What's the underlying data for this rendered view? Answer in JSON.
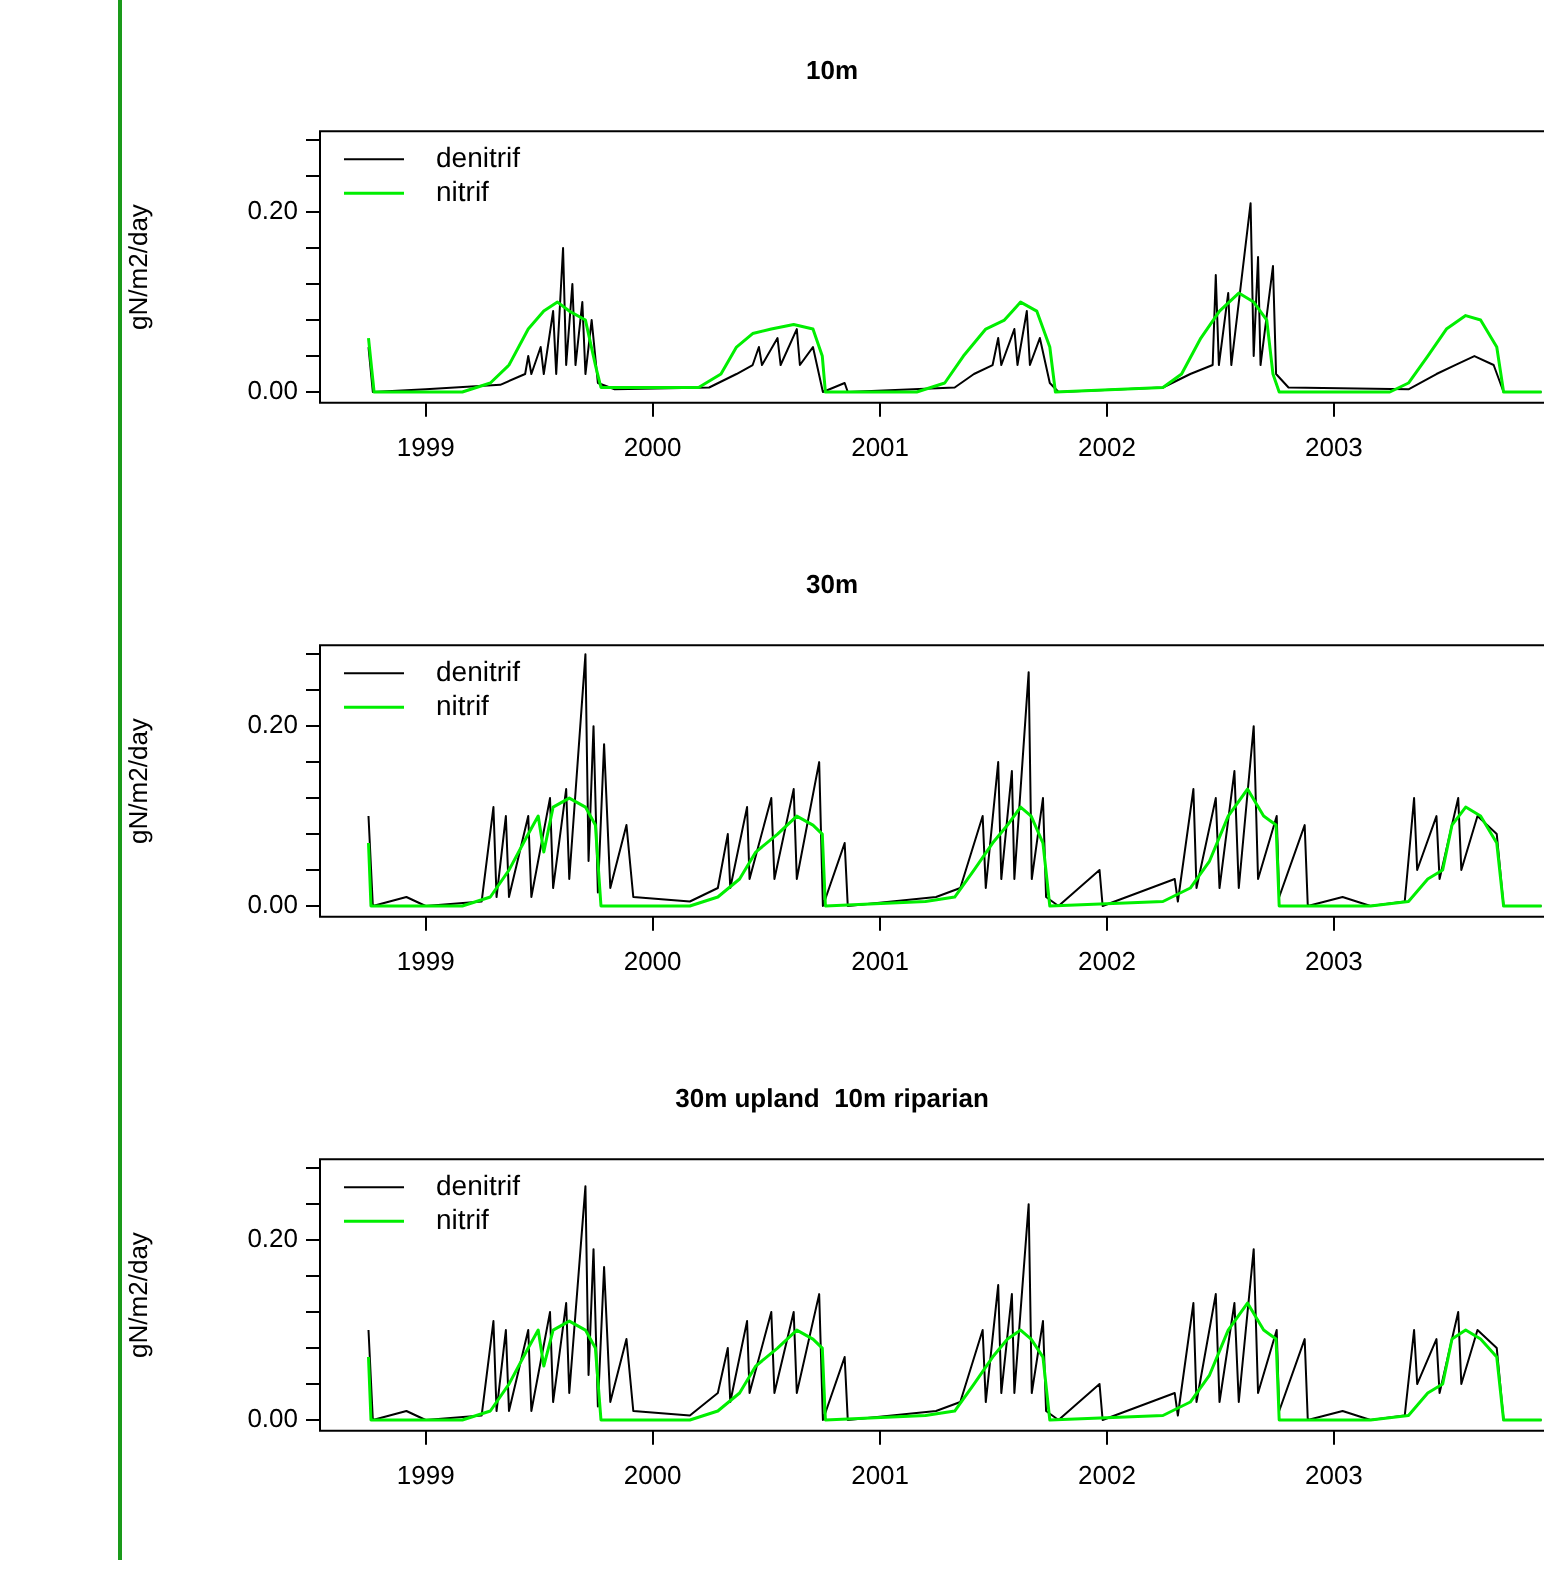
{
  "chart_data": [
    {
      "type": "line",
      "title": "10m",
      "ylabel": "gN/m2/day",
      "legend": "top left",
      "grid": false,
      "marker": "none",
      "xlim": [
        "1998-07-15",
        "2003-12-05"
      ],
      "ylim": [
        -0.012,
        0.29
      ],
      "xticks": [
        {
          "value": "1999-01-01",
          "label": "1999"
        },
        {
          "value": "2000-01-01",
          "label": "2000"
        },
        {
          "value": "2001-01-01",
          "label": "2001"
        },
        {
          "value": "2002-01-01",
          "label": "2002"
        },
        {
          "value": "2003-01-01",
          "label": "2003"
        }
      ],
      "yticks": [
        {
          "value": 0,
          "label": "0.00"
        },
        {
          "value": 0.04,
          "label": null
        },
        {
          "value": 0.08,
          "label": null
        },
        {
          "value": 0.12,
          "label": null
        },
        {
          "value": 0.16,
          "label": null
        },
        {
          "value": 0.2,
          "label": "0.20"
        },
        {
          "value": 0.24,
          "label": null
        },
        {
          "value": 0.28,
          "label": null
        }
      ],
      "series": [
        {
          "name": "denitrif",
          "color": "#000000",
          "x": [
            "1998-10-01",
            "1998-10-08",
            "1999-01-01",
            "1999-05-01",
            "1999-06-10",
            "1999-06-15",
            "1999-06-20",
            "1999-07-05",
            "1999-07-10",
            "1999-07-25",
            "1999-07-30",
            "1999-08-10",
            "1999-08-15",
            "1999-08-25",
            "1999-08-30",
            "1999-09-10",
            "1999-09-15",
            "1999-09-25",
            "1999-10-05",
            "1999-11-01",
            "2000-04-01",
            "2000-05-15",
            "2000-06-10",
            "2000-06-20",
            "2000-06-25",
            "2000-07-20",
            "2000-07-25",
            "2000-08-20",
            "2000-08-25",
            "2000-09-15",
            "2000-10-01",
            "2000-11-05",
            "2000-11-10",
            "2001-05-01",
            "2001-06-01",
            "2001-07-01",
            "2001-07-10",
            "2001-07-15",
            "2001-08-05",
            "2001-08-10",
            "2001-08-25",
            "2001-08-30",
            "2001-09-15",
            "2001-10-01",
            "2001-10-15",
            "2002-04-01",
            "2002-05-15",
            "2002-06-20",
            "2002-06-25",
            "2002-06-30",
            "2002-07-15",
            "2002-07-20",
            "2002-08-20",
            "2002-08-25",
            "2002-09-01",
            "2002-09-05",
            "2002-09-25",
            "2002-09-30",
            "2002-10-20",
            "2003-05-01",
            "2003-06-15",
            "2003-07-15",
            "2003-08-15",
            "2003-09-15",
            "2003-10-01",
            "2003-12-01"
          ],
          "values": [
            0.05,
            0,
            0.003,
            0.008,
            0.02,
            0.04,
            0.02,
            0.05,
            0.02,
            0.09,
            0.02,
            0.16,
            0.03,
            0.12,
            0.03,
            0.1,
            0.02,
            0.08,
            0.01,
            0.003,
            0.005,
            0.02,
            0.03,
            0.05,
            0.03,
            0.06,
            0.03,
            0.07,
            0.03,
            0.05,
            0,
            0.01,
            0,
            0.005,
            0.02,
            0.03,
            0.06,
            0.03,
            0.07,
            0.03,
            0.09,
            0.03,
            0.06,
            0.01,
            0,
            0.005,
            0.02,
            0.03,
            0.13,
            0.03,
            0.11,
            0.03,
            0.21,
            0.04,
            0.15,
            0.03,
            0.14,
            0.02,
            0.005,
            0.003,
            0.02,
            0.03,
            0.04,
            0.03,
            0,
            0
          ]
        },
        {
          "name": "nitrif",
          "color": "#00ee00",
          "x": [
            "1998-10-01",
            "1998-10-10",
            "1999-03-01",
            "1999-04-15",
            "1999-05-15",
            "1999-06-15",
            "1999-07-10",
            "1999-08-01",
            "1999-08-20",
            "1999-09-15",
            "1999-10-01",
            "1999-10-10",
            "2000-03-15",
            "2000-04-20",
            "2000-05-15",
            "2000-06-10",
            "2000-07-10",
            "2000-08-15",
            "2000-09-15",
            "2000-09-30",
            "2000-10-05",
            "2001-03-01",
            "2001-04-15",
            "2001-05-15",
            "2001-06-20",
            "2001-07-20",
            "2001-08-15",
            "2001-09-10",
            "2001-10-01",
            "2001-10-10",
            "2002-04-01",
            "2002-05-01",
            "2002-06-01",
            "2002-07-01",
            "2002-08-01",
            "2002-08-25",
            "2002-09-15",
            "2002-09-25",
            "2002-10-05",
            "2003-04-01",
            "2003-05-01",
            "2003-06-01",
            "2003-07-01",
            "2003-08-01",
            "2003-08-25",
            "2003-09-20",
            "2003-10-01",
            "2003-12-01"
          ],
          "values": [
            0.06,
            0,
            0,
            0.01,
            0.03,
            0.07,
            0.09,
            0.1,
            0.09,
            0.08,
            0.03,
            0.005,
            0.005,
            0.02,
            0.05,
            0.065,
            0.07,
            0.075,
            0.07,
            0.04,
            0,
            0,
            0.01,
            0.04,
            0.07,
            0.08,
            0.1,
            0.09,
            0.05,
            0,
            0.005,
            0.02,
            0.06,
            0.09,
            0.11,
            0.1,
            0.08,
            0.02,
            0,
            0,
            0.01,
            0.04,
            0.07,
            0.085,
            0.08,
            0.05,
            0,
            0
          ]
        }
      ]
    },
    {
      "type": "line",
      "title": "30m",
      "ylabel": "gN/m2/day",
      "legend": "top left",
      "grid": false,
      "marker": "none",
      "xlim": [
        "1998-07-15",
        "2003-12-05"
      ],
      "ylim": [
        -0.012,
        0.29
      ],
      "xticks": [
        {
          "value": "1999-01-01",
          "label": "1999"
        },
        {
          "value": "2000-01-01",
          "label": "2000"
        },
        {
          "value": "2001-01-01",
          "label": "2001"
        },
        {
          "value": "2002-01-01",
          "label": "2002"
        },
        {
          "value": "2003-01-01",
          "label": "2003"
        }
      ],
      "yticks": [
        {
          "value": 0,
          "label": "0.00"
        },
        {
          "value": 0.04,
          "label": null
        },
        {
          "value": 0.08,
          "label": null
        },
        {
          "value": 0.12,
          "label": null
        },
        {
          "value": 0.16,
          "label": null
        },
        {
          "value": 0.2,
          "label": "0.20"
        },
        {
          "value": 0.24,
          "label": null
        },
        {
          "value": 0.28,
          "label": null
        }
      ],
      "series": [
        {
          "name": "denitrif",
          "color": "#000000",
          "x": [
            "1998-10-01",
            "1998-10-08",
            "1998-12-01",
            "1999-01-01",
            "1999-04-01",
            "1999-04-20",
            "1999-04-25",
            "1999-05-10",
            "1999-05-15",
            "1999-06-15",
            "1999-06-20",
            "1999-07-20",
            "1999-07-25",
            "1999-08-15",
            "1999-08-20",
            "1999-09-15",
            "1999-09-20",
            "1999-09-28",
            "1999-10-05",
            "1999-10-15",
            "1999-10-25",
            "1999-11-20",
            "1999-12-01",
            "2000-03-01",
            "2000-04-15",
            "2000-05-01",
            "2000-05-05",
            "2000-06-01",
            "2000-06-05",
            "2000-07-10",
            "2000-07-15",
            "2000-08-15",
            "2000-08-20",
            "2000-09-25",
            "2000-10-01",
            "2000-11-05",
            "2000-11-10",
            "2001-04-01",
            "2001-05-10",
            "2001-06-15",
            "2001-06-20",
            "2001-07-10",
            "2001-07-15",
            "2001-08-01",
            "2001-08-05",
            "2001-08-28",
            "2001-09-02",
            "2001-09-20",
            "2001-09-25",
            "2001-10-15",
            "2001-12-20",
            "2001-12-25",
            "2002-04-20",
            "2002-04-25",
            "2002-05-20",
            "2002-05-25",
            "2002-06-25",
            "2002-07-01",
            "2002-07-25",
            "2002-08-01",
            "2002-08-25",
            "2002-09-01",
            "2002-10-01",
            "2002-10-05",
            "2002-11-15",
            "2002-11-20",
            "2003-01-15",
            "2003-03-01",
            "2003-04-25",
            "2003-05-10",
            "2003-05-15",
            "2003-06-15",
            "2003-06-20",
            "2003-07-20",
            "2003-07-25",
            "2003-08-20",
            "2003-09-20",
            "2003-10-01",
            "2003-12-01"
          ],
          "values": [
            0.1,
            0,
            0.01,
            0,
            0.005,
            0.11,
            0.01,
            0.1,
            0.01,
            0.1,
            0.01,
            0.12,
            0.02,
            0.13,
            0.03,
            0.28,
            0.05,
            0.2,
            0.015,
            0.18,
            0.02,
            0.09,
            0.01,
            0.005,
            0.02,
            0.08,
            0.02,
            0.11,
            0.03,
            0.12,
            0.03,
            0.13,
            0.03,
            0.16,
            0,
            0.07,
            0,
            0.01,
            0.02,
            0.1,
            0.02,
            0.16,
            0.03,
            0.15,
            0.03,
            0.26,
            0.03,
            0.12,
            0.01,
            0,
            0.04,
            0,
            0.03,
            0.005,
            0.13,
            0.02,
            0.12,
            0.02,
            0.15,
            0.02,
            0.2,
            0.03,
            0.1,
            0.01,
            0.09,
            0,
            0.01,
            0,
            0.005,
            0.12,
            0.04,
            0.1,
            0.03,
            0.12,
            0.04,
            0.1,
            0.08,
            0,
            0
          ]
        },
        {
          "name": "nitrif",
          "color": "#00ee00",
          "x": [
            "1998-10-01",
            "1998-10-05",
            "1999-03-01",
            "1999-04-15",
            "1999-05-15",
            "1999-06-15",
            "1999-07-01",
            "1999-07-10",
            "1999-07-25",
            "1999-08-20",
            "1999-09-15",
            "1999-10-01",
            "1999-10-10",
            "2000-03-01",
            "2000-04-15",
            "2000-05-20",
            "2000-06-15",
            "2000-07-20",
            "2000-08-20",
            "2000-09-15",
            "2000-09-30",
            "2000-10-05",
            "2001-03-15",
            "2001-05-01",
            "2001-06-01",
            "2001-07-01",
            "2001-07-25",
            "2001-08-15",
            "2001-09-01",
            "2001-09-20",
            "2001-10-01",
            "2002-04-01",
            "2002-05-15",
            "2002-06-15",
            "2002-07-15",
            "2002-08-15",
            "2002-09-10",
            "2002-09-30",
            "2002-10-05",
            "2003-03-01",
            "2003-05-01",
            "2003-06-01",
            "2003-06-25",
            "2003-07-10",
            "2003-08-01",
            "2003-08-25",
            "2003-09-20",
            "2003-10-01",
            "2003-12-01"
          ],
          "values": [
            0.07,
            0,
            0,
            0.01,
            0.04,
            0.08,
            0.1,
            0.06,
            0.11,
            0.12,
            0.11,
            0.09,
            0,
            0,
            0.01,
            0.03,
            0.06,
            0.08,
            0.1,
            0.09,
            0.08,
            0,
            0.005,
            0.01,
            0.04,
            0.07,
            0.09,
            0.11,
            0.1,
            0.07,
            0,
            0.005,
            0.02,
            0.05,
            0.1,
            0.13,
            0.1,
            0.09,
            0,
            0,
            0.005,
            0.03,
            0.04,
            0.09,
            0.11,
            0.1,
            0.07,
            0,
            0
          ]
        }
      ]
    },
    {
      "type": "line",
      "title": "30m upland  10m riparian",
      "ylabel": "gN/m2/day",
      "legend": "top left",
      "grid": false,
      "marker": "none",
      "xlim": [
        "1998-07-15",
        "2003-12-05"
      ],
      "ylim": [
        -0.012,
        0.29
      ],
      "xticks": [
        {
          "value": "1999-01-01",
          "label": "1999"
        },
        {
          "value": "2000-01-01",
          "label": "2000"
        },
        {
          "value": "2001-01-01",
          "label": "2001"
        },
        {
          "value": "2002-01-01",
          "label": "2002"
        },
        {
          "value": "2003-01-01",
          "label": "2003"
        }
      ],
      "yticks": [
        {
          "value": 0,
          "label": "0.00"
        },
        {
          "value": 0.04,
          "label": null
        },
        {
          "value": 0.08,
          "label": null
        },
        {
          "value": 0.12,
          "label": null
        },
        {
          "value": 0.16,
          "label": null
        },
        {
          "value": 0.2,
          "label": "0.20"
        },
        {
          "value": 0.24,
          "label": null
        },
        {
          "value": 0.28,
          "label": null
        }
      ],
      "series": [
        {
          "name": "denitrif",
          "color": "#000000",
          "x": [
            "1998-10-01",
            "1998-10-08",
            "1998-12-01",
            "1999-01-01",
            "1999-04-01",
            "1999-04-20",
            "1999-04-25",
            "1999-05-10",
            "1999-05-15",
            "1999-06-15",
            "1999-06-20",
            "1999-07-20",
            "1999-07-25",
            "1999-08-15",
            "1999-08-20",
            "1999-09-15",
            "1999-09-20",
            "1999-09-28",
            "1999-10-05",
            "1999-10-15",
            "1999-10-25",
            "1999-11-20",
            "1999-12-01",
            "2000-03-01",
            "2000-04-15",
            "2000-05-01",
            "2000-05-05",
            "2000-06-01",
            "2000-06-05",
            "2000-07-10",
            "2000-07-15",
            "2000-08-15",
            "2000-08-20",
            "2000-09-25",
            "2000-10-01",
            "2000-11-05",
            "2000-11-10",
            "2001-04-01",
            "2001-05-10",
            "2001-06-15",
            "2001-06-20",
            "2001-07-10",
            "2001-07-15",
            "2001-08-01",
            "2001-08-05",
            "2001-08-28",
            "2001-09-02",
            "2001-09-20",
            "2001-09-25",
            "2001-10-15",
            "2001-12-20",
            "2001-12-25",
            "2002-04-20",
            "2002-04-25",
            "2002-05-20",
            "2002-05-25",
            "2002-06-25",
            "2002-07-01",
            "2002-07-25",
            "2002-08-01",
            "2002-08-25",
            "2002-09-01",
            "2002-10-01",
            "2002-10-05",
            "2002-11-15",
            "2002-11-20",
            "2003-01-15",
            "2003-03-01",
            "2003-04-25",
            "2003-05-10",
            "2003-05-15",
            "2003-06-15",
            "2003-06-20",
            "2003-07-20",
            "2003-07-25",
            "2003-08-20",
            "2003-09-20",
            "2003-10-01",
            "2003-12-01"
          ],
          "values": [
            0.1,
            0,
            0.01,
            0,
            0.005,
            0.11,
            0.01,
            0.1,
            0.01,
            0.1,
            0.01,
            0.12,
            0.02,
            0.13,
            0.03,
            0.26,
            0.05,
            0.19,
            0.015,
            0.17,
            0.02,
            0.09,
            0.01,
            0.005,
            0.03,
            0.08,
            0.02,
            0.11,
            0.03,
            0.12,
            0.03,
            0.12,
            0.03,
            0.14,
            0,
            0.07,
            0,
            0.01,
            0.02,
            0.1,
            0.02,
            0.15,
            0.03,
            0.14,
            0.03,
            0.24,
            0.03,
            0.11,
            0.01,
            0,
            0.04,
            0,
            0.03,
            0.005,
            0.13,
            0.02,
            0.14,
            0.02,
            0.13,
            0.02,
            0.19,
            0.03,
            0.1,
            0.01,
            0.09,
            0,
            0.01,
            0,
            0.005,
            0.1,
            0.04,
            0.09,
            0.03,
            0.12,
            0.04,
            0.1,
            0.08,
            0,
            0
          ]
        },
        {
          "name": "nitrif",
          "color": "#00ee00",
          "x": [
            "1998-10-01",
            "1998-10-05",
            "1999-03-01",
            "1999-04-15",
            "1999-05-15",
            "1999-06-15",
            "1999-07-01",
            "1999-07-10",
            "1999-07-25",
            "1999-08-20",
            "1999-09-15",
            "1999-10-01",
            "1999-10-10",
            "2000-03-01",
            "2000-04-15",
            "2000-05-20",
            "2000-06-15",
            "2000-07-20",
            "2000-08-20",
            "2000-09-15",
            "2000-09-30",
            "2000-10-05",
            "2001-03-15",
            "2001-05-01",
            "2001-06-01",
            "2001-07-01",
            "2001-07-25",
            "2001-08-15",
            "2001-09-01",
            "2001-09-20",
            "2001-10-01",
            "2002-04-01",
            "2002-05-15",
            "2002-06-15",
            "2002-07-15",
            "2002-08-15",
            "2002-09-10",
            "2002-09-30",
            "2002-10-05",
            "2003-03-01",
            "2003-05-01",
            "2003-06-01",
            "2003-06-25",
            "2003-07-10",
            "2003-08-01",
            "2003-08-25",
            "2003-09-20",
            "2003-10-01",
            "2003-12-01"
          ],
          "values": [
            0.07,
            0,
            0,
            0.01,
            0.04,
            0.08,
            0.1,
            0.06,
            0.1,
            0.11,
            0.1,
            0.08,
            0,
            0,
            0.01,
            0.03,
            0.06,
            0.08,
            0.1,
            0.09,
            0.08,
            0,
            0.005,
            0.01,
            0.04,
            0.07,
            0.09,
            0.1,
            0.09,
            0.07,
            0,
            0.005,
            0.02,
            0.05,
            0.1,
            0.13,
            0.1,
            0.09,
            0,
            0,
            0.005,
            0.03,
            0.04,
            0.09,
            0.1,
            0.09,
            0.07,
            0,
            0
          ]
        }
      ]
    }
  ]
}
